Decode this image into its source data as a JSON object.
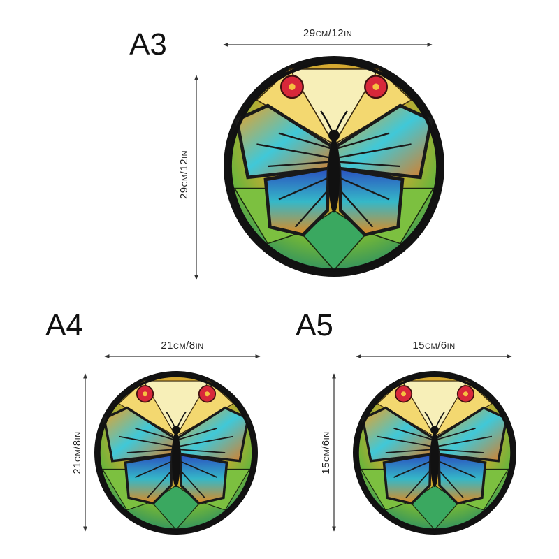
{
  "puzzles": [
    {
      "label": "A3",
      "width": "29cm/12in",
      "height": "29cm/12in"
    },
    {
      "label": "A4",
      "width": "21cm/8in",
      "height": "21cm/8in"
    },
    {
      "label": "A5",
      "width": "15cm/6in",
      "height": "15cm/6in"
    }
  ]
}
